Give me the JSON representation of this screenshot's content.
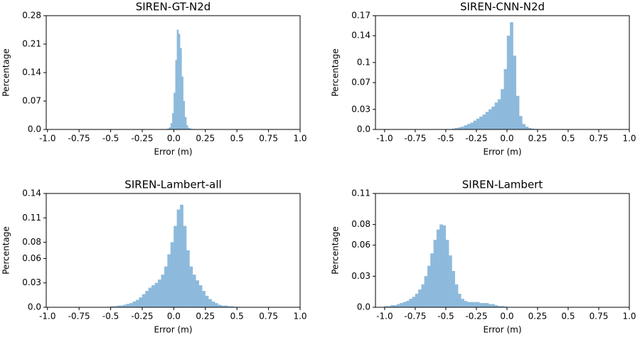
{
  "chart_data": [
    {
      "type": "histogram",
      "title": "SIREN-GT-N2d",
      "x_label": "Error (m)",
      "y_label": "Percentage",
      "color": "#8dbadc",
      "bins": [
        -0.05,
        -0.0375,
        -0.025,
        -0.0125,
        0,
        0.0125,
        0.025,
        0.0375,
        0.05,
        0.0625,
        0.075,
        0.0875,
        0.1,
        0.1125,
        0.125,
        0.1375,
        0.15
      ],
      "counts": [
        0.002,
        0.005,
        0.015,
        0.04,
        0.09,
        0.17,
        0.245,
        0.235,
        0.2,
        0.13,
        0.07,
        0.03,
        0.01,
        0.004,
        0.002,
        0.001
      ],
      "xlim": [
        -1.01,
        1.0
      ],
      "ylim": [
        0,
        0.28
      ],
      "xticks": [
        {
          "value": -1,
          "label": "-1.0"
        },
        -0.75,
        -0.5,
        -0.25,
        {
          "value": 0,
          "label": "0.0"
        },
        0.25,
        0.5,
        0.75,
        {
          "value": 1,
          "label": "1.0"
        }
      ],
      "yticks": [
        {
          "value": 0,
          "label": "0.0"
        },
        0.07,
        0.14,
        0.21,
        0.28
      ]
    },
    {
      "type": "histogram",
      "title": "SIREN-CNN-N2d",
      "x_label": "Error (m)",
      "y_label": "Percentage",
      "color": "#8dbadc",
      "bins": [
        -0.45,
        -0.425,
        -0.4,
        -0.375,
        -0.35,
        -0.325,
        -0.3,
        -0.275,
        -0.25,
        -0.225,
        -0.2,
        -0.175,
        -0.15,
        -0.125,
        -0.1,
        -0.075,
        -0.05,
        -0.025,
        0,
        0.025,
        0.05,
        0.075,
        0.1,
        0.125,
        0.15,
        0.175,
        0.2,
        0.225,
        0.25
      ],
      "counts": [
        0.001,
        0.002,
        0.003,
        0.004,
        0.006,
        0.008,
        0.01,
        0.013,
        0.016,
        0.019,
        0.022,
        0.026,
        0.03,
        0.034,
        0.04,
        0.045,
        0.06,
        0.09,
        0.14,
        0.16,
        0.11,
        0.05,
        0.02,
        0.008,
        0.004,
        0.002,
        0.001,
        0.0005
      ],
      "xlim": [
        -1.075,
        1.0
      ],
      "ylim": [
        0,
        0.17
      ],
      "xticks": [
        {
          "value": -1,
          "label": "-1.0"
        },
        -0.75,
        -0.5,
        -0.25,
        {
          "value": 0,
          "label": "0.0"
        },
        0.25,
        0.5,
        0.75,
        {
          "value": 1,
          "label": "1.0"
        }
      ],
      "yticks": [
        {
          "value": 0,
          "label": "0.0"
        },
        0.03,
        0.07,
        0.1,
        0.14,
        0.17
      ]
    },
    {
      "type": "histogram",
      "title": "SIREN-Lambert-all",
      "x_label": "Error (m)",
      "y_label": "Percentage",
      "color": "#8dbadc",
      "bins": [
        -0.5,
        -0.475,
        -0.45,
        -0.425,
        -0.4,
        -0.375,
        -0.35,
        -0.325,
        -0.3,
        -0.275,
        -0.25,
        -0.225,
        -0.2,
        -0.175,
        -0.15,
        -0.125,
        -0.1,
        -0.075,
        -0.05,
        -0.025,
        0,
        0.025,
        0.05,
        0.075,
        0.1,
        0.125,
        0.15,
        0.175,
        0.2,
        0.225,
        0.25,
        0.275,
        0.3,
        0.325,
        0.35,
        0.375,
        0.4,
        0.425,
        0.45,
        0.475,
        0.5
      ],
      "counts": [
        0.001,
        0.001,
        0.002,
        0.002,
        0.003,
        0.004,
        0.005,
        0.007,
        0.009,
        0.012,
        0.016,
        0.02,
        0.024,
        0.027,
        0.03,
        0.034,
        0.04,
        0.05,
        0.065,
        0.08,
        0.1,
        0.12,
        0.126,
        0.1,
        0.07,
        0.05,
        0.04,
        0.033,
        0.027,
        0.02,
        0.014,
        0.01,
        0.007,
        0.005,
        0.003,
        0.002,
        0.002,
        0.001,
        0.001,
        0.0005
      ],
      "xlim": [
        -1.01,
        1.0
      ],
      "ylim": [
        0,
        0.14
      ],
      "xticks": [
        {
          "value": -1,
          "label": "-1.0"
        },
        -0.75,
        -0.5,
        -0.25,
        {
          "value": 0,
          "label": "0.0"
        },
        0.25,
        0.5,
        0.75,
        {
          "value": 1,
          "label": "1.0"
        }
      ],
      "yticks": [
        {
          "value": 0,
          "label": "0.0"
        },
        0.03,
        0.06,
        0.08,
        0.11,
        0.14
      ]
    },
    {
      "type": "histogram",
      "title": "SIREN-Lambert",
      "x_label": "Error (m)",
      "y_label": "Percentage",
      "color": "#8dbadc",
      "bins": [
        -1,
        -0.975,
        -0.95,
        -0.925,
        -0.9,
        -0.875,
        -0.85,
        -0.825,
        -0.8,
        -0.775,
        -0.75,
        -0.725,
        -0.7,
        -0.675,
        -0.65,
        -0.625,
        -0.6,
        -0.575,
        -0.55,
        -0.525,
        -0.5,
        -0.475,
        -0.45,
        -0.425,
        -0.4,
        -0.375,
        -0.35,
        -0.325,
        -0.3,
        -0.275,
        -0.25,
        -0.225,
        -0.2,
        -0.175,
        -0.15,
        -0.125,
        -0.1,
        -0.075,
        -0.05,
        -0.025,
        0
      ],
      "counts": [
        0.001,
        0.001,
        0.002,
        0.002,
        0.003,
        0.004,
        0.005,
        0.006,
        0.008,
        0.01,
        0.013,
        0.017,
        0.022,
        0.03,
        0.04,
        0.052,
        0.065,
        0.075,
        0.08,
        0.079,
        0.065,
        0.05,
        0.035,
        0.022,
        0.013,
        0.008,
        0.006,
        0.005,
        0.005,
        0.005,
        0.005,
        0.004,
        0.004,
        0.004,
        0.003,
        0.003,
        0.002,
        0.001,
        0.001,
        0.0005
      ],
      "xlim": [
        -1.075,
        1.0
      ],
      "ylim": [
        0,
        0.11
      ],
      "xticks": [
        {
          "value": -1,
          "label": "-1.0"
        },
        -0.75,
        -0.5,
        -0.25,
        {
          "value": 0,
          "label": "0.0"
        },
        0.25,
        0.5,
        0.75,
        {
          "value": 1,
          "label": "1.0"
        }
      ],
      "yticks": [
        {
          "value": 0,
          "label": "0.0"
        },
        0.03,
        0.06,
        0.08,
        0.11
      ]
    }
  ]
}
